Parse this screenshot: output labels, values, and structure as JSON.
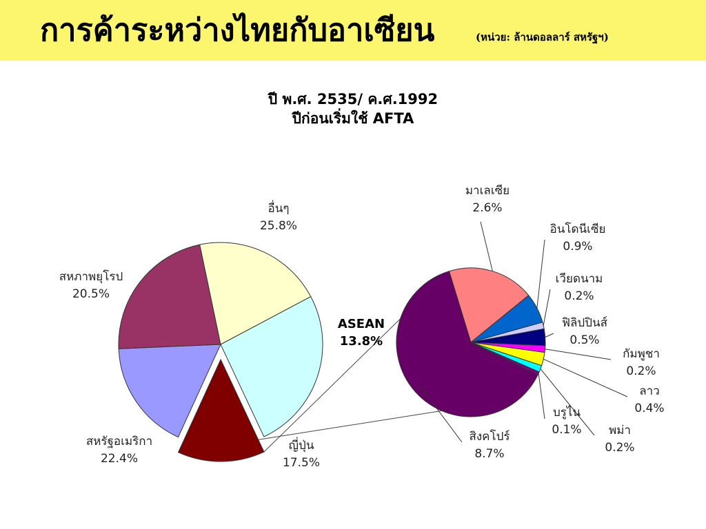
{
  "header": {
    "title": "การค้าระหว่างไทยกับอาเซียน",
    "unit": "(หน่วย: ล้านดอลลาร์ สหรัฐฯ)",
    "bar_color": "#fbf66e"
  },
  "chart_data": {
    "type": "pie",
    "title": [
      "ปี พ.ศ. 2535/ ค.ศ.1992",
      "ปีก่อนเริ่มใช้ AFTA"
    ],
    "main": {
      "slices": [
        {
          "name": "อื่นๆ",
          "label": "25.8%",
          "value": 25.8,
          "color": "#ccffff"
        },
        {
          "name": "ASEAN",
          "label": "13.8%",
          "value": 13.8,
          "color": "#800000",
          "exploded": true
        },
        {
          "name": "ญี่ปุ่น",
          "label": "17.5%",
          "value": 17.5,
          "color": "#9999ff"
        },
        {
          "name": "สหรัฐอเมริกา",
          "label": "22.4%",
          "value": 22.4,
          "color": "#993366"
        },
        {
          "name": "สหภาพยุโรป",
          "label": "20.5%",
          "value": 20.5,
          "color": "#ffffcc"
        }
      ]
    },
    "breakdown": {
      "parent": "ASEAN",
      "slices": [
        {
          "name": "มาเลเซีย",
          "label": "2.6%",
          "value": 2.6,
          "color": "#ff8080"
        },
        {
          "name": "อินโดนีเซีย",
          "label": "0.9%",
          "value": 0.9,
          "color": "#0066cc"
        },
        {
          "name": "เวียดนาม",
          "label": "0.2%",
          "value": 0.2,
          "color": "#ccccff"
        },
        {
          "name": "ฟิลิปปินส์",
          "label": "0.5%",
          "value": 0.5,
          "color": "#000080"
        },
        {
          "name": "กัมพูชา",
          "label": "0.2%",
          "value": 0.2,
          "color": "#ff00ff"
        },
        {
          "name": "ลาว",
          "label": "0.4%",
          "value": 0.4,
          "color": "#ffff00"
        },
        {
          "name": "พม่า",
          "label": "0.2%",
          "value": 0.2,
          "color": "#00ffff"
        },
        {
          "name": "บรูไน",
          "label": "0.1%",
          "value": 0.1,
          "color": "#800080"
        },
        {
          "name": "สิงคโปร์",
          "label": "8.7%",
          "value": 8.7,
          "color": "#660066"
        }
      ]
    }
  }
}
